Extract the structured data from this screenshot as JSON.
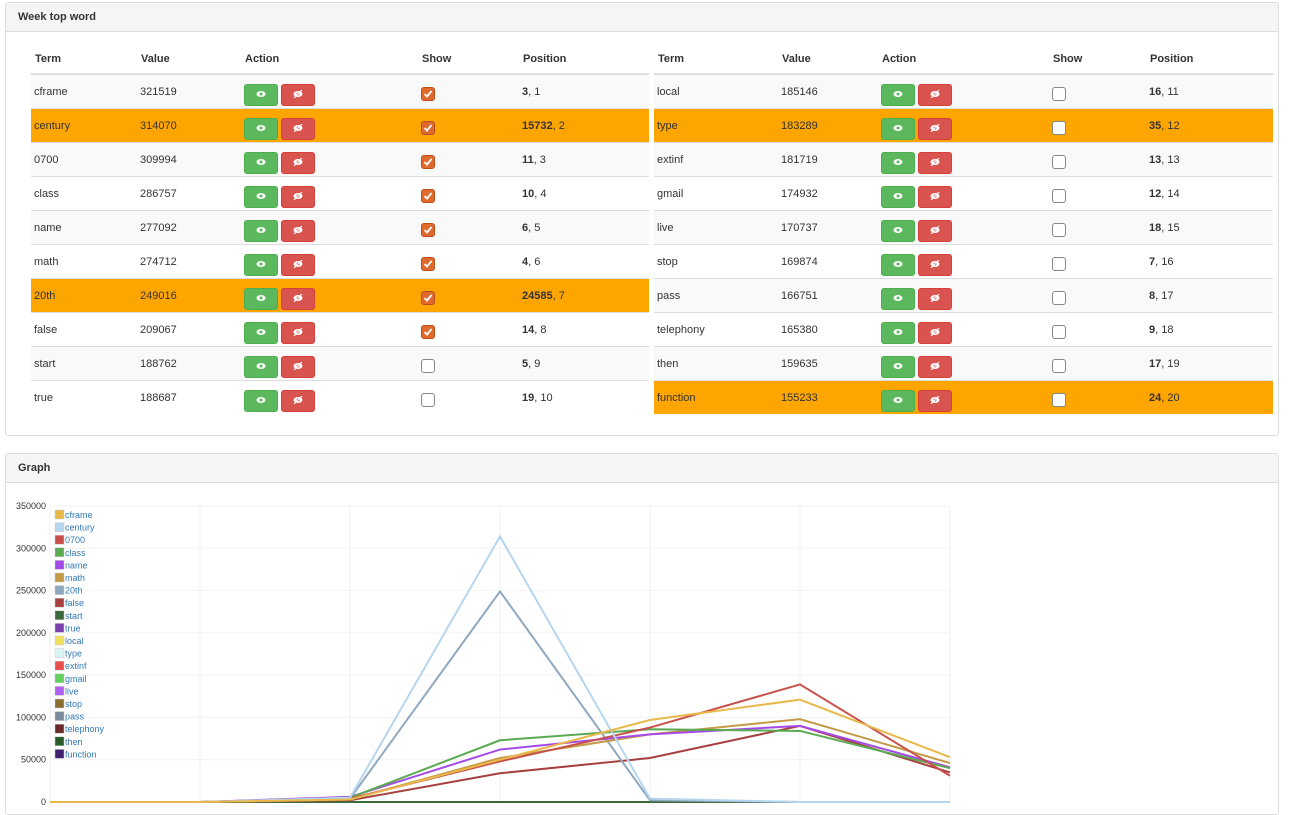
{
  "panels": {
    "top": "Week top word",
    "graph": "Graph"
  },
  "tables": [
    {
      "headers": [
        "Term",
        "Value",
        "Action",
        "Show",
        "Position"
      ],
      "rows": [
        {
          "term": "cframe",
          "value": "321519",
          "checked": true,
          "highlight": false,
          "rank": "3",
          "suffix": ", 1"
        },
        {
          "term": "century",
          "value": "314070",
          "checked": true,
          "highlight": true,
          "rank": "15732",
          "suffix": ", 2"
        },
        {
          "term": "0700",
          "value": "309994",
          "checked": true,
          "highlight": false,
          "rank": "11",
          "suffix": ", 3"
        },
        {
          "term": "class",
          "value": "286757",
          "checked": true,
          "highlight": false,
          "rank": "10",
          "suffix": ", 4"
        },
        {
          "term": "name",
          "value": "277092",
          "checked": true,
          "highlight": false,
          "rank": "6",
          "suffix": ", 5"
        },
        {
          "term": "math",
          "value": "274712",
          "checked": true,
          "highlight": false,
          "rank": "4",
          "suffix": ", 6"
        },
        {
          "term": "20th",
          "value": "249016",
          "checked": true,
          "highlight": true,
          "rank": "24585",
          "suffix": ", 7"
        },
        {
          "term": "false",
          "value": "209067",
          "checked": true,
          "highlight": false,
          "rank": "14",
          "suffix": ", 8"
        },
        {
          "term": "start",
          "value": "188762",
          "checked": false,
          "highlight": false,
          "rank": "5",
          "suffix": ", 9"
        },
        {
          "term": "true",
          "value": "188687",
          "checked": false,
          "highlight": false,
          "rank": "19",
          "suffix": ", 10"
        }
      ]
    },
    {
      "headers": [
        "Term",
        "Value",
        "Action",
        "Show",
        "Position"
      ],
      "rows": [
        {
          "term": "local",
          "value": "185146",
          "checked": false,
          "highlight": false,
          "rank": "16",
          "suffix": ", 11"
        },
        {
          "term": "type",
          "value": "183289",
          "checked": false,
          "highlight": true,
          "rank": "35",
          "suffix": ", 12"
        },
        {
          "term": "extinf",
          "value": "181719",
          "checked": false,
          "highlight": false,
          "rank": "13",
          "suffix": ", 13"
        },
        {
          "term": "gmail",
          "value": "174932",
          "checked": false,
          "highlight": false,
          "rank": "12",
          "suffix": ", 14"
        },
        {
          "term": "live",
          "value": "170737",
          "checked": false,
          "highlight": false,
          "rank": "18",
          "suffix": ", 15"
        },
        {
          "term": "stop",
          "value": "169874",
          "checked": false,
          "highlight": false,
          "rank": "7",
          "suffix": ", 16"
        },
        {
          "term": "pass",
          "value": "166751",
          "checked": false,
          "highlight": false,
          "rank": "8",
          "suffix": ", 17"
        },
        {
          "term": "telephony",
          "value": "165380",
          "checked": false,
          "highlight": false,
          "rank": "9",
          "suffix": ", 18"
        },
        {
          "term": "then",
          "value": "159635",
          "checked": false,
          "highlight": false,
          "rank": "17",
          "suffix": ", 19"
        },
        {
          "term": "function",
          "value": "155233",
          "checked": false,
          "highlight": true,
          "rank": "24",
          "suffix": ", 20"
        }
      ]
    }
  ],
  "chart_data": {
    "type": "line",
    "categories": [
      null,
      null,
      null,
      null,
      null,
      null,
      null
    ],
    "ylim": [
      0,
      350000
    ],
    "yticks": [
      0,
      50000,
      100000,
      150000,
      200000,
      250000,
      300000,
      350000
    ],
    "grid": true,
    "series": [
      {
        "name": "cframe",
        "color": "#e8b84a",
        "values": [
          0,
          0,
          3000,
          50000,
          97000,
          121000,
          53000
        ]
      },
      {
        "name": "century",
        "color": "#b5d6ee",
        "values": [
          0,
          0,
          5000,
          314000,
          4000,
          0,
          0
        ]
      },
      {
        "name": "0700",
        "color": "#c9504a",
        "values": [
          0,
          0,
          4000,
          48000,
          88000,
          139000,
          31000
        ]
      },
      {
        "name": "class",
        "color": "#5aaa52",
        "values": [
          0,
          0,
          5000,
          73000,
          86000,
          84000,
          40000
        ]
      },
      {
        "name": "name",
        "color": "#a54ae8",
        "values": [
          0,
          0,
          6000,
          62000,
          80000,
          90000,
          41000
        ]
      },
      {
        "name": "math",
        "color": "#c49a45",
        "values": [
          0,
          0,
          3000,
          52000,
          80000,
          98000,
          46000
        ]
      },
      {
        "name": "20th",
        "color": "#8fa8c0",
        "values": [
          0,
          0,
          4000,
          249000,
          2000,
          0,
          0
        ]
      },
      {
        "name": "false",
        "color": "#a84040",
        "values": [
          0,
          0,
          2000,
          34000,
          52000,
          90000,
          35000
        ]
      },
      {
        "name": "start",
        "color": "#3a6a3a",
        "values": [
          0,
          0,
          0,
          0,
          0,
          0,
          0
        ]
      },
      {
        "name": "true",
        "color": "#7a40b0",
        "values": [
          0,
          0,
          0,
          0,
          0,
          0,
          0
        ]
      },
      {
        "name": "local",
        "color": "#f0e060",
        "values": [
          0,
          0,
          0,
          0,
          0,
          0,
          0
        ]
      },
      {
        "name": "type",
        "color": "#d8f4f4",
        "values": [
          0,
          0,
          0,
          0,
          0,
          0,
          0
        ]
      },
      {
        "name": "extinf",
        "color": "#e85050",
        "values": [
          0,
          0,
          0,
          0,
          0,
          0,
          0
        ]
      },
      {
        "name": "gmail",
        "color": "#60d060",
        "values": [
          0,
          0,
          0,
          0,
          0,
          0,
          0
        ]
      },
      {
        "name": "live",
        "color": "#b060f0",
        "values": [
          0,
          0,
          0,
          0,
          0,
          0,
          0
        ]
      },
      {
        "name": "stop",
        "color": "#8a7030",
        "values": [
          0,
          0,
          0,
          0,
          0,
          0,
          0
        ]
      },
      {
        "name": "pass",
        "color": "#7a8a9a",
        "values": [
          0,
          0,
          0,
          0,
          0,
          0,
          0
        ]
      },
      {
        "name": "telephony",
        "color": "#6a2a2a",
        "values": [
          0,
          0,
          0,
          0,
          0,
          0,
          0
        ]
      },
      {
        "name": "then",
        "color": "#2a5a2a",
        "values": [
          0,
          0,
          0,
          0,
          0,
          0,
          0
        ]
      },
      {
        "name": "function",
        "color": "#402070",
        "values": [
          0,
          0,
          0,
          0,
          0,
          0,
          0
        ]
      }
    ]
  }
}
